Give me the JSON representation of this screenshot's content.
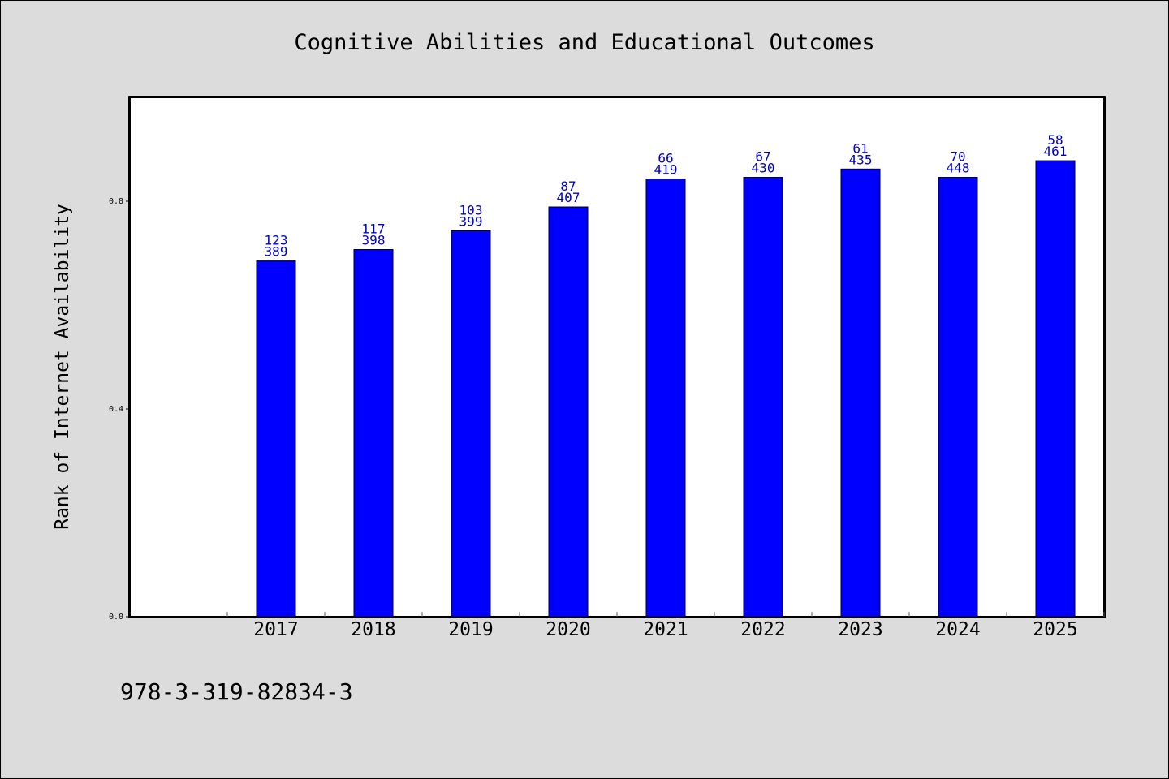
{
  "chart_data": {
    "type": "bar",
    "title": "Cognitive Abilities and Educational Outcomes",
    "ylabel": "Rank of Internet Availability",
    "xlabel": "",
    "ylim": [
      0,
      1.0
    ],
    "yticks": [
      "0.0",
      "0.4",
      "0.8"
    ],
    "categories": [
      "2017",
      "2018",
      "2019",
      "2020",
      "2021",
      "2022",
      "2023",
      "2024",
      "2025"
    ],
    "values": [
      0.685,
      0.707,
      0.743,
      0.789,
      0.843,
      0.846,
      0.862,
      0.846,
      0.878
    ],
    "labels_top": [
      "123",
      "117",
      "103",
      "87",
      "66",
      "67",
      "61",
      "70",
      "58"
    ],
    "labels_bottom": [
      "389",
      "398",
      "399",
      "407",
      "419",
      "430",
      "435",
      "448",
      "461"
    ],
    "bar_color": "#0000ff",
    "label_color": "#0000cc",
    "grid": false,
    "legend": "none"
  },
  "footer": {
    "isbn": "978-3-319-82834-3"
  }
}
